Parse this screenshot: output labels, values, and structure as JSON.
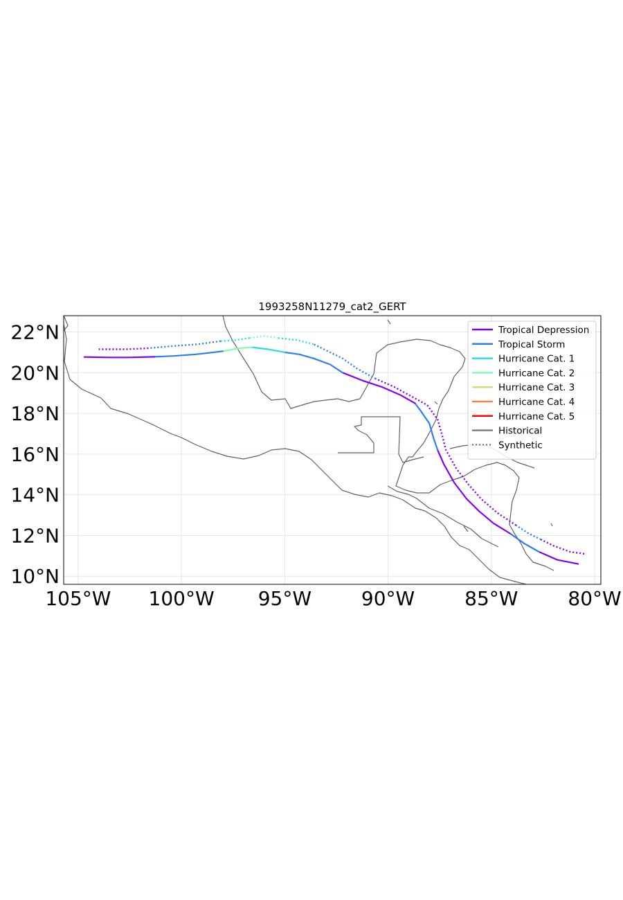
{
  "map": {
    "title": "1993258N11279_cat2_GERT",
    "lon_range": [
      -105.7,
      -79.7
    ],
    "lat_range": [
      9.6,
      22.8
    ],
    "x_ticks": [
      {
        "lon": -105,
        "label": "105°W"
      },
      {
        "lon": -100,
        "label": "100°W"
      },
      {
        "lon": -95,
        "label": "95°W"
      },
      {
        "lon": -90,
        "label": "90°W"
      },
      {
        "lon": -85,
        "label": "85°W"
      },
      {
        "lon": -80,
        "label": "80°W"
      }
    ],
    "y_ticks": [
      {
        "lat": 22,
        "label": "22°N"
      },
      {
        "lat": 20,
        "label": "20°N"
      },
      {
        "lat": 18,
        "label": "18°N"
      },
      {
        "lat": 16,
        "label": "16°N"
      },
      {
        "lat": 14,
        "label": "14°N"
      },
      {
        "lat": 12,
        "label": "12°N"
      },
      {
        "lat": 10,
        "label": "10°N"
      }
    ],
    "grid": true,
    "legend": {
      "placement": "top-right",
      "entries": [
        {
          "label": "Tropical Depression",
          "color": "#8000ff",
          "style": "solid"
        },
        {
          "label": "Tropical Storm",
          "color": "#2c7ef7",
          "style": "solid"
        },
        {
          "label": "Hurricane Cat. 1",
          "color": "#2adddd",
          "style": "solid"
        },
        {
          "label": "Hurricane Cat. 2",
          "color": "#80ffb4",
          "style": "solid"
        },
        {
          "label": "Hurricane Cat. 3",
          "color": "#d4dd80",
          "style": "solid"
        },
        {
          "label": "Hurricane Cat. 4",
          "color": "#ff8042",
          "style": "solid"
        },
        {
          "label": "Hurricane Cat. 5",
          "color": "#ff0000",
          "style": "solid"
        },
        {
          "label": "Historical",
          "color": "#808080",
          "style": "solid"
        },
        {
          "label": "Synthetic",
          "color": "#808080",
          "style": "dotted"
        }
      ]
    }
  },
  "chart_data": {
    "type": "map-track",
    "title": "1993258N11279_cat2_GERT",
    "xlabel": "",
    "ylabel": "",
    "xlim": [
      -105.7,
      -79.7
    ],
    "ylim": [
      9.6,
      22.8
    ],
    "series": [
      {
        "name": "Historical",
        "style": "solid",
        "segments": [
          {
            "category": "Tropical Depression",
            "points": [
              [
                -80.8,
                10.6
              ],
              [
                -81.8,
                10.8
              ],
              [
                -82.7,
                11.2
              ]
            ]
          },
          {
            "category": "Tropical Storm",
            "points": [
              [
                -82.7,
                11.2
              ],
              [
                -83.4,
                11.6
              ],
              [
                -84.1,
                12.1
              ]
            ]
          },
          {
            "category": "Tropical Depression",
            "points": [
              [
                -84.1,
                12.1
              ],
              [
                -84.9,
                12.6
              ],
              [
                -85.6,
                13.2
              ],
              [
                -86.2,
                13.8
              ],
              [
                -86.8,
                14.6
              ],
              [
                -87.3,
                15.5
              ],
              [
                -87.6,
                16.2
              ]
            ]
          },
          {
            "category": "Tropical Storm",
            "points": [
              [
                -87.6,
                16.2
              ],
              [
                -87.8,
                16.8
              ],
              [
                -88.0,
                17.5
              ],
              [
                -88.4,
                18.1
              ],
              [
                -88.7,
                18.5
              ]
            ]
          },
          {
            "category": "Tropical Depression",
            "points": [
              [
                -88.7,
                18.5
              ],
              [
                -89.4,
                18.9
              ],
              [
                -90.3,
                19.3
              ],
              [
                -91.2,
                19.6
              ],
              [
                -92.2,
                20.0
              ]
            ]
          },
          {
            "category": "Tropical Storm",
            "points": [
              [
                -92.2,
                20.0
              ],
              [
                -92.8,
                20.4
              ],
              [
                -93.6,
                20.7
              ],
              [
                -94.3,
                20.9
              ],
              [
                -95.0,
                21.0
              ]
            ]
          },
          {
            "category": "Hurricane Cat. 1",
            "points": [
              [
                -95.0,
                21.0
              ],
              [
                -95.8,
                21.15
              ],
              [
                -96.6,
                21.25
              ]
            ]
          },
          {
            "category": "Hurricane Cat. 2",
            "points": [
              [
                -96.6,
                21.25
              ],
              [
                -97.2,
                21.2
              ],
              [
                -98.0,
                21.05
              ]
            ]
          },
          {
            "category": "Tropical Storm",
            "points": [
              [
                -98.0,
                21.05
              ],
              [
                -99.3,
                20.9
              ],
              [
                -100.4,
                20.82
              ],
              [
                -101.3,
                20.78
              ]
            ]
          },
          {
            "category": "Tropical Depression",
            "points": [
              [
                -101.3,
                20.78
              ],
              [
                -102.5,
                20.75
              ],
              [
                -103.5,
                20.75
              ],
              [
                -104.7,
                20.77
              ]
            ]
          }
        ]
      },
      {
        "name": "Synthetic",
        "style": "dotted",
        "segments": [
          {
            "category": "Tropical Depression",
            "points": [
              [
                -80.5,
                11.1
              ],
              [
                -81.2,
                11.2
              ],
              [
                -82.0,
                11.5
              ],
              [
                -82.6,
                11.8
              ]
            ]
          },
          {
            "category": "Tropical Storm",
            "points": [
              [
                -82.6,
                11.8
              ],
              [
                -83.2,
                12.1
              ],
              [
                -83.8,
                12.5
              ]
            ]
          },
          {
            "category": "Tropical Depression",
            "points": [
              [
                -83.8,
                12.5
              ],
              [
                -84.7,
                13.1
              ],
              [
                -85.5,
                13.8
              ],
              [
                -86.1,
                14.5
              ],
              [
                -86.7,
                15.3
              ],
              [
                -87.2,
                16.2
              ],
              [
                -87.4,
                17.0
              ],
              [
                -87.6,
                17.7
              ],
              [
                -88.1,
                18.4
              ],
              [
                -88.8,
                18.8
              ],
              [
                -89.7,
                19.3
              ],
              [
                -90.6,
                19.7
              ]
            ]
          },
          {
            "category": "Tropical Storm",
            "points": [
              [
                -90.6,
                19.7
              ],
              [
                -91.5,
                20.2
              ],
              [
                -92.2,
                20.7
              ],
              [
                -93.0,
                21.1
              ],
              [
                -93.6,
                21.4
              ]
            ]
          },
          {
            "category": "Hurricane Cat. 1",
            "points": [
              [
                -93.6,
                21.4
              ],
              [
                -94.4,
                21.6
              ],
              [
                -95.3,
                21.7
              ]
            ]
          },
          {
            "category": "Hurricane Cat. 2",
            "points": [
              [
                -95.3,
                21.7
              ],
              [
                -96.0,
                21.8
              ],
              [
                -96.7,
                21.7
              ]
            ]
          },
          {
            "category": "Hurricane Cat. 1",
            "points": [
              [
                -96.7,
                21.7
              ],
              [
                -97.4,
                21.6
              ],
              [
                -98.1,
                21.55
              ]
            ]
          },
          {
            "category": "Tropical Storm",
            "points": [
              [
                -98.1,
                21.55
              ],
              [
                -99.2,
                21.4
              ],
              [
                -100.5,
                21.3
              ],
              [
                -101.6,
                21.2
              ]
            ]
          },
          {
            "category": "Tropical Depression",
            "points": [
              [
                -101.6,
                21.2
              ],
              [
                -102.7,
                21.15
              ],
              [
                -103.6,
                21.15
              ],
              [
                -104.0,
                21.15
              ]
            ]
          }
        ]
      }
    ]
  }
}
